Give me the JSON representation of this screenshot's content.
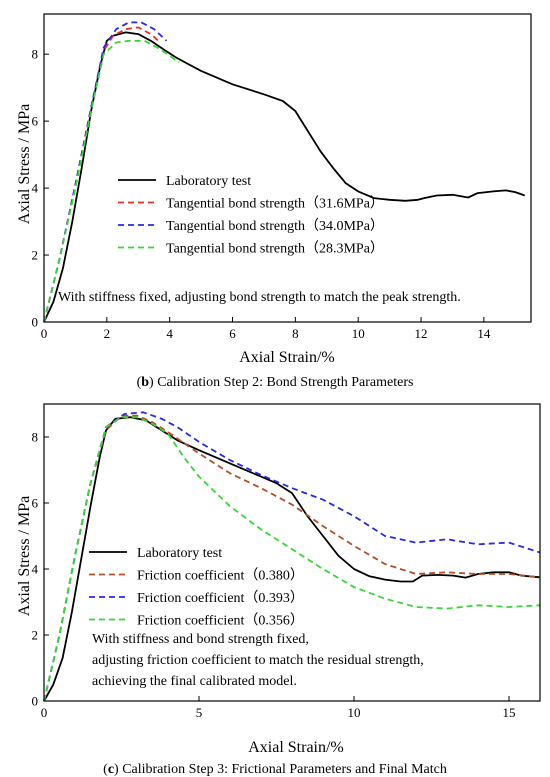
{
  "chart_data": [
    {
      "type": "line",
      "panel_caption": {
        "label": "b",
        "text": ") Calibration Step 2: Bond Strength Parameters"
      },
      "xlabel": "Axial Strain/%",
      "ylabel": "Axial Stress / MPa",
      "xlim": [
        0,
        15.5
      ],
      "ylim": [
        0,
        9.2
      ],
      "xticks": [
        0,
        2,
        4,
        6,
        8,
        10,
        12,
        14
      ],
      "yticks": [
        0,
        2,
        4,
        6,
        8
      ],
      "legend_position": "center-left",
      "annotation": [
        "With stiffness fixed, adjusting bond strength to match the peak strength."
      ],
      "series": [
        {
          "name": "Laboratory test",
          "color": "#000000",
          "dash": "solid",
          "points": [
            [
              0,
              0
            ],
            [
              0.3,
              0.6
            ],
            [
              0.6,
              1.6
            ],
            [
              0.9,
              3.0
            ],
            [
              1.2,
              4.6
            ],
            [
              1.5,
              6.3
            ],
            [
              1.8,
              7.7
            ],
            [
              2.0,
              8.4
            ],
            [
              2.2,
              8.55
            ],
            [
              2.6,
              8.65
            ],
            [
              3.0,
              8.6
            ],
            [
              3.4,
              8.4
            ],
            [
              3.8,
              8.15
            ],
            [
              4.2,
              7.9
            ],
            [
              5,
              7.5
            ],
            [
              6,
              7.1
            ],
            [
              7,
              6.8
            ],
            [
              7.6,
              6.6
            ],
            [
              8,
              6.3
            ],
            [
              8.4,
              5.7
            ],
            [
              8.8,
              5.1
            ],
            [
              9.2,
              4.6
            ],
            [
              9.6,
              4.15
            ],
            [
              10,
              3.9
            ],
            [
              10.5,
              3.7
            ],
            [
              11,
              3.65
            ],
            [
              11.5,
              3.62
            ],
            [
              11.9,
              3.65
            ],
            [
              12.1,
              3.7
            ],
            [
              12.5,
              3.78
            ],
            [
              13,
              3.8
            ],
            [
              13.5,
              3.72
            ],
            [
              13.8,
              3.85
            ],
            [
              14.3,
              3.9
            ],
            [
              14.7,
              3.93
            ],
            [
              15.0,
              3.88
            ],
            [
              15.3,
              3.78
            ]
          ]
        },
        {
          "name": "Tangential bond strength（31.6MPa）",
          "color": "#e8302a",
          "dash": "6,4",
          "points": [
            [
              0,
              0
            ],
            [
              0.5,
              1.9
            ],
            [
              1.0,
              4.1
            ],
            [
              1.5,
              6.4
            ],
            [
              1.9,
              8.1
            ],
            [
              2.2,
              8.55
            ],
            [
              2.6,
              8.75
            ],
            [
              3.0,
              8.8
            ],
            [
              3.4,
              8.6
            ],
            [
              3.7,
              8.35
            ]
          ]
        },
        {
          "name": "Tangential bond strength（34.0MPa）",
          "color": "#2a2ae0",
          "dash": "6,4",
          "points": [
            [
              0,
              0
            ],
            [
              0.5,
              1.9
            ],
            [
              1.0,
              4.1
            ],
            [
              1.5,
              6.4
            ],
            [
              1.9,
              8.2
            ],
            [
              2.3,
              8.75
            ],
            [
              2.7,
              8.95
            ],
            [
              3.1,
              8.95
            ],
            [
              3.5,
              8.75
            ],
            [
              3.9,
              8.4
            ]
          ]
        },
        {
          "name": "Tangential bond strength（28.3MPa）",
          "color": "#3ad43a",
          "dash": "6,4",
          "points": [
            [
              0,
              0
            ],
            [
              0.5,
              1.9
            ],
            [
              1.0,
              4.0
            ],
            [
              1.5,
              6.3
            ],
            [
              1.9,
              8.0
            ],
            [
              2.3,
              8.35
            ],
            [
              2.7,
              8.4
            ],
            [
              3.2,
              8.4
            ],
            [
              3.6,
              8.2
            ],
            [
              4.0,
              7.95
            ],
            [
              4.3,
              7.75
            ]
          ]
        }
      ]
    },
    {
      "type": "line",
      "panel_caption": {
        "label": "c",
        "text": ") Calibration Step 3: Frictional Parameters and Final Match"
      },
      "xlabel": "Axial Strain/%",
      "ylabel": "Axial Stress / MPa",
      "xlim": [
        0,
        16
      ],
      "ylim": [
        0,
        9
      ],
      "xticks": [
        0,
        5,
        10,
        15
      ],
      "yticks": [
        0,
        2,
        4,
        6,
        8
      ],
      "legend_position": "bottom-left",
      "annotation": [
        "With stiffness and bond strength fixed,",
        "adjusting friction coefficient to match the residual strength,",
        "achieving the final calibrated model."
      ],
      "series": [
        {
          "name": "Laboratory test",
          "color": "#000000",
          "dash": "solid",
          "points": [
            [
              0,
              0
            ],
            [
              0.3,
              0.5
            ],
            [
              0.6,
              1.3
            ],
            [
              0.9,
              2.7
            ],
            [
              1.2,
              4.3
            ],
            [
              1.5,
              5.9
            ],
            [
              1.8,
              7.4
            ],
            [
              2.0,
              8.2
            ],
            [
              2.3,
              8.55
            ],
            [
              2.8,
              8.6
            ],
            [
              3.3,
              8.5
            ],
            [
              3.8,
              8.2
            ],
            [
              4.3,
              7.9
            ],
            [
              5,
              7.6
            ],
            [
              6,
              7.2
            ],
            [
              7,
              6.8
            ],
            [
              7.5,
              6.6
            ],
            [
              8,
              6.3
            ],
            [
              8.5,
              5.6
            ],
            [
              9,
              5.0
            ],
            [
              9.5,
              4.4
            ],
            [
              10,
              4.0
            ],
            [
              10.5,
              3.78
            ],
            [
              11,
              3.68
            ],
            [
              11.5,
              3.62
            ],
            [
              11.9,
              3.62
            ],
            [
              12.2,
              3.8
            ],
            [
              12.7,
              3.82
            ],
            [
              13.2,
              3.8
            ],
            [
              13.6,
              3.74
            ],
            [
              14,
              3.85
            ],
            [
              14.5,
              3.9
            ],
            [
              15,
              3.9
            ],
            [
              15.4,
              3.8
            ],
            [
              16,
              3.75
            ]
          ]
        },
        {
          "name": "Friction coefficient（0.380）",
          "color": "#b0502a",
          "dash": "6,4",
          "points": [
            [
              0,
              0
            ],
            [
              0.5,
              2.0
            ],
            [
              1.0,
              4.4
            ],
            [
              1.5,
              6.6
            ],
            [
              2.0,
              8.2
            ],
            [
              2.5,
              8.65
            ],
            [
              3.0,
              8.65
            ],
            [
              3.5,
              8.45
            ],
            [
              4,
              8.15
            ],
            [
              5,
              7.5
            ],
            [
              6,
              6.9
            ],
            [
              7,
              6.45
            ],
            [
              8,
              5.95
            ],
            [
              9,
              5.3
            ],
            [
              10,
              4.7
            ],
            [
              11,
              4.15
            ],
            [
              12,
              3.85
            ],
            [
              13,
              3.9
            ],
            [
              14,
              3.85
            ],
            [
              15,
              3.85
            ],
            [
              16,
              3.75
            ]
          ]
        },
        {
          "name": "Friction coefficient（0.393）",
          "color": "#2a2ae0",
          "dash": "6,4",
          "points": [
            [
              0,
              0
            ],
            [
              0.5,
              2.0
            ],
            [
              1.0,
              4.4
            ],
            [
              1.5,
              6.6
            ],
            [
              2.0,
              8.3
            ],
            [
              2.6,
              8.7
            ],
            [
              3.2,
              8.75
            ],
            [
              3.8,
              8.55
            ],
            [
              4.3,
              8.3
            ],
            [
              5,
              7.85
            ],
            [
              6,
              7.3
            ],
            [
              7,
              6.85
            ],
            [
              8,
              6.45
            ],
            [
              9,
              6.1
            ],
            [
              10,
              5.6
            ],
            [
              11,
              5.0
            ],
            [
              12,
              4.8
            ],
            [
              13,
              4.9
            ],
            [
              14,
              4.75
            ],
            [
              15,
              4.8
            ],
            [
              16,
              4.5
            ]
          ]
        },
        {
          "name": "Friction coefficient（0.356）",
          "color": "#3ad43a",
          "dash": "6,4",
          "points": [
            [
              0,
              0
            ],
            [
              0.5,
              2.0
            ],
            [
              1.0,
              4.4
            ],
            [
              1.5,
              6.6
            ],
            [
              2.0,
              8.3
            ],
            [
              2.5,
              8.6
            ],
            [
              3.0,
              8.6
            ],
            [
              3.5,
              8.4
            ],
            [
              4,
              8.1
            ],
            [
              4.5,
              7.4
            ],
            [
              5,
              6.8
            ],
            [
              6,
              5.9
            ],
            [
              7,
              5.2
            ],
            [
              8,
              4.6
            ],
            [
              9,
              4.0
            ],
            [
              10,
              3.45
            ],
            [
              11,
              3.1
            ],
            [
              12,
              2.85
            ],
            [
              13,
              2.8
            ],
            [
              14,
              2.9
            ],
            [
              15,
              2.85
            ],
            [
              16,
              2.9
            ]
          ]
        }
      ]
    }
  ]
}
